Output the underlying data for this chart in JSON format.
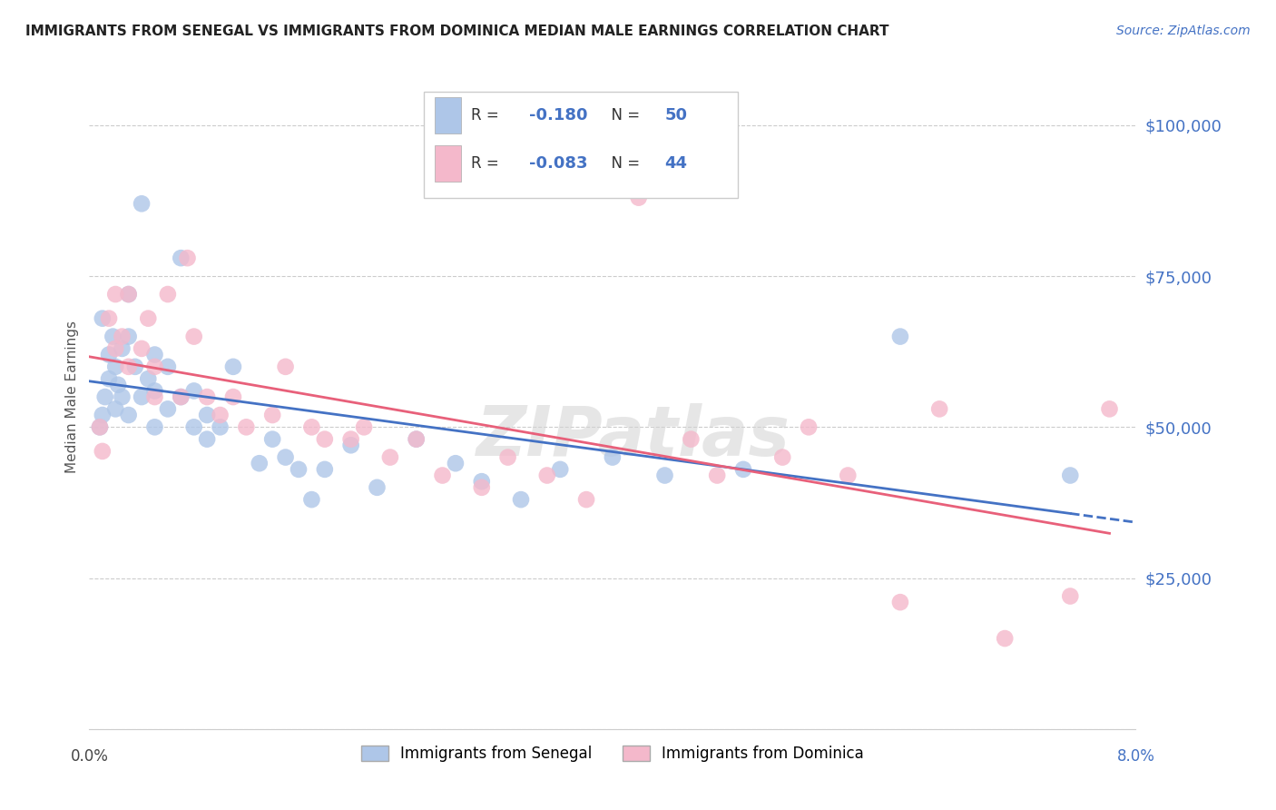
{
  "title": "IMMIGRANTS FROM SENEGAL VS IMMIGRANTS FROM DOMINICA MEDIAN MALE EARNINGS CORRELATION CHART",
  "source": "Source: ZipAtlas.com",
  "ylabel": "Median Male Earnings",
  "xlim": [
    0.0,
    0.08
  ],
  "ylim": [
    0,
    110000
  ],
  "watermark": "ZIPatlas",
  "legend_r1_val": "-0.180",
  "legend_n1_val": "50",
  "legend_r2_val": "-0.083",
  "legend_n2_val": "44",
  "senegal_color": "#aec6e8",
  "dominica_color": "#f4b8cb",
  "senegal_line_color": "#4472c4",
  "dominica_line_color": "#e8607a",
  "axis_label_color": "#4472c4",
  "corr_val_color": "#4472c4",
  "n_val_color": "#4472c4",
  "background_color": "#ffffff",
  "senegal_x": [
    0.0008,
    0.001,
    0.001,
    0.0012,
    0.0015,
    0.0015,
    0.0018,
    0.002,
    0.002,
    0.0022,
    0.0025,
    0.0025,
    0.003,
    0.003,
    0.003,
    0.0035,
    0.004,
    0.004,
    0.0045,
    0.005,
    0.005,
    0.005,
    0.006,
    0.006,
    0.007,
    0.007,
    0.008,
    0.008,
    0.009,
    0.009,
    0.01,
    0.011,
    0.013,
    0.014,
    0.015,
    0.016,
    0.017,
    0.018,
    0.02,
    0.022,
    0.025,
    0.028,
    0.03,
    0.033,
    0.036,
    0.04,
    0.044,
    0.05,
    0.062,
    0.075
  ],
  "senegal_y": [
    50000,
    68000,
    52000,
    55000,
    62000,
    58000,
    65000,
    53000,
    60000,
    57000,
    63000,
    55000,
    72000,
    65000,
    52000,
    60000,
    87000,
    55000,
    58000,
    62000,
    56000,
    50000,
    60000,
    53000,
    78000,
    55000,
    56000,
    50000,
    52000,
    48000,
    50000,
    60000,
    44000,
    48000,
    45000,
    43000,
    38000,
    43000,
    47000,
    40000,
    48000,
    44000,
    41000,
    38000,
    43000,
    45000,
    42000,
    43000,
    65000,
    42000
  ],
  "dominica_x": [
    0.0008,
    0.001,
    0.0015,
    0.002,
    0.002,
    0.0025,
    0.003,
    0.003,
    0.004,
    0.0045,
    0.005,
    0.005,
    0.006,
    0.007,
    0.0075,
    0.008,
    0.009,
    0.01,
    0.011,
    0.012,
    0.014,
    0.015,
    0.017,
    0.018,
    0.02,
    0.021,
    0.023,
    0.025,
    0.027,
    0.03,
    0.032,
    0.035,
    0.038,
    0.042,
    0.046,
    0.048,
    0.053,
    0.055,
    0.058,
    0.062,
    0.065,
    0.07,
    0.075,
    0.078
  ],
  "dominica_y": [
    50000,
    46000,
    68000,
    72000,
    63000,
    65000,
    72000,
    60000,
    63000,
    68000,
    60000,
    55000,
    72000,
    55000,
    78000,
    65000,
    55000,
    52000,
    55000,
    50000,
    52000,
    60000,
    50000,
    48000,
    48000,
    50000,
    45000,
    48000,
    42000,
    40000,
    45000,
    42000,
    38000,
    88000,
    48000,
    42000,
    45000,
    50000,
    42000,
    21000,
    53000,
    15000,
    22000,
    53000
  ]
}
